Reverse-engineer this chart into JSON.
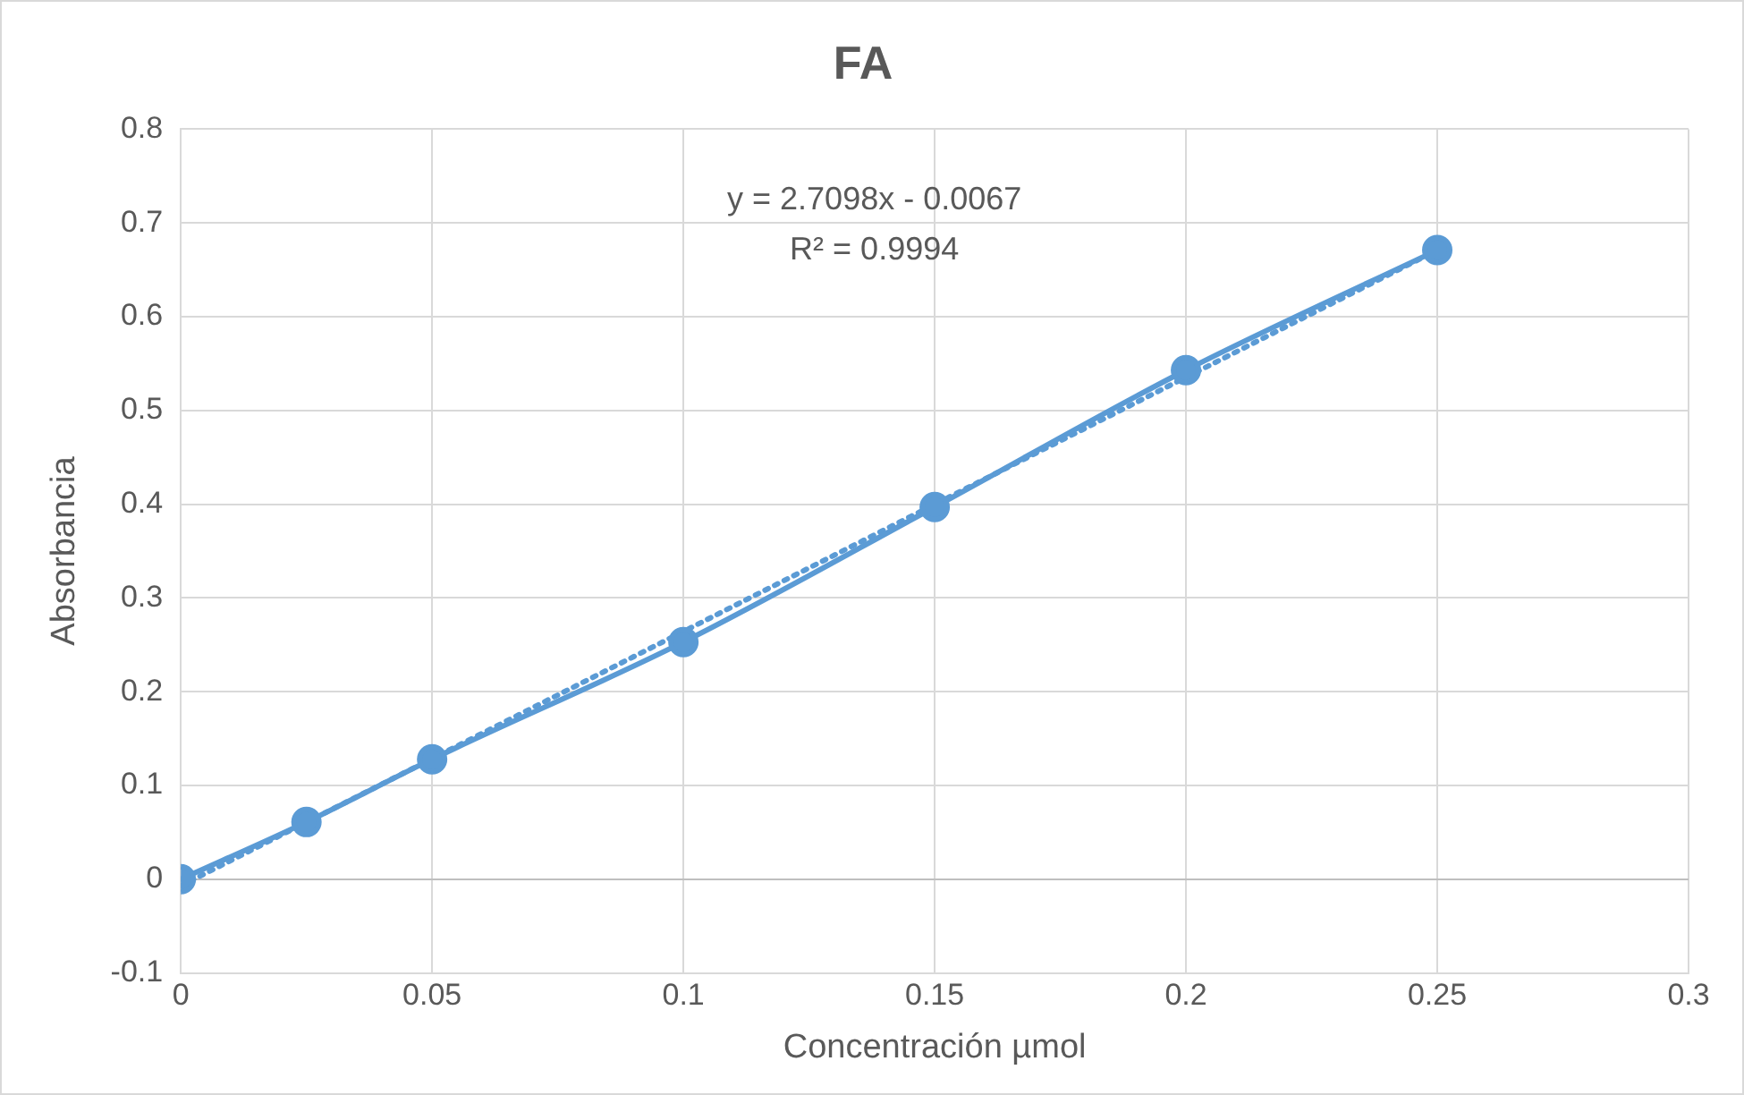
{
  "chart_data": {
    "type": "line",
    "title": "FA",
    "xlabel": "Concentración µmol",
    "ylabel": "Absorbancia",
    "x": [
      0,
      0.025,
      0.05,
      0.1,
      0.15,
      0.2,
      0.25
    ],
    "series": [
      {
        "color": "#5b9bd5",
        "values": [
          0,
          0.061,
          0.128,
          0.253,
          0.397,
          0.543,
          0.671
        ],
        "marker": "circle",
        "line_style": "solid"
      },
      {
        "type": "line",
        "color": "#5b9bd5",
        "x": [
          0,
          0.25
        ],
        "values": [
          -0.007,
          0.671
        ],
        "line_style": "dotted"
      }
    ],
    "xlim": [
      0,
      0.3
    ],
    "xticks": [
      0,
      0.05,
      0.1,
      0.15,
      0.2,
      0.25,
      0.3
    ],
    "ylim": [
      -0.1,
      0.8
    ],
    "yticks": [
      -0.1,
      0,
      0.1,
      0.2,
      0.3,
      0.4,
      0.5,
      0.6,
      0.7,
      0.8
    ],
    "grid": true,
    "legend": false,
    "annotations": [
      "y = 2.7098x - 0.0067",
      "R² = 0.9994"
    ]
  }
}
